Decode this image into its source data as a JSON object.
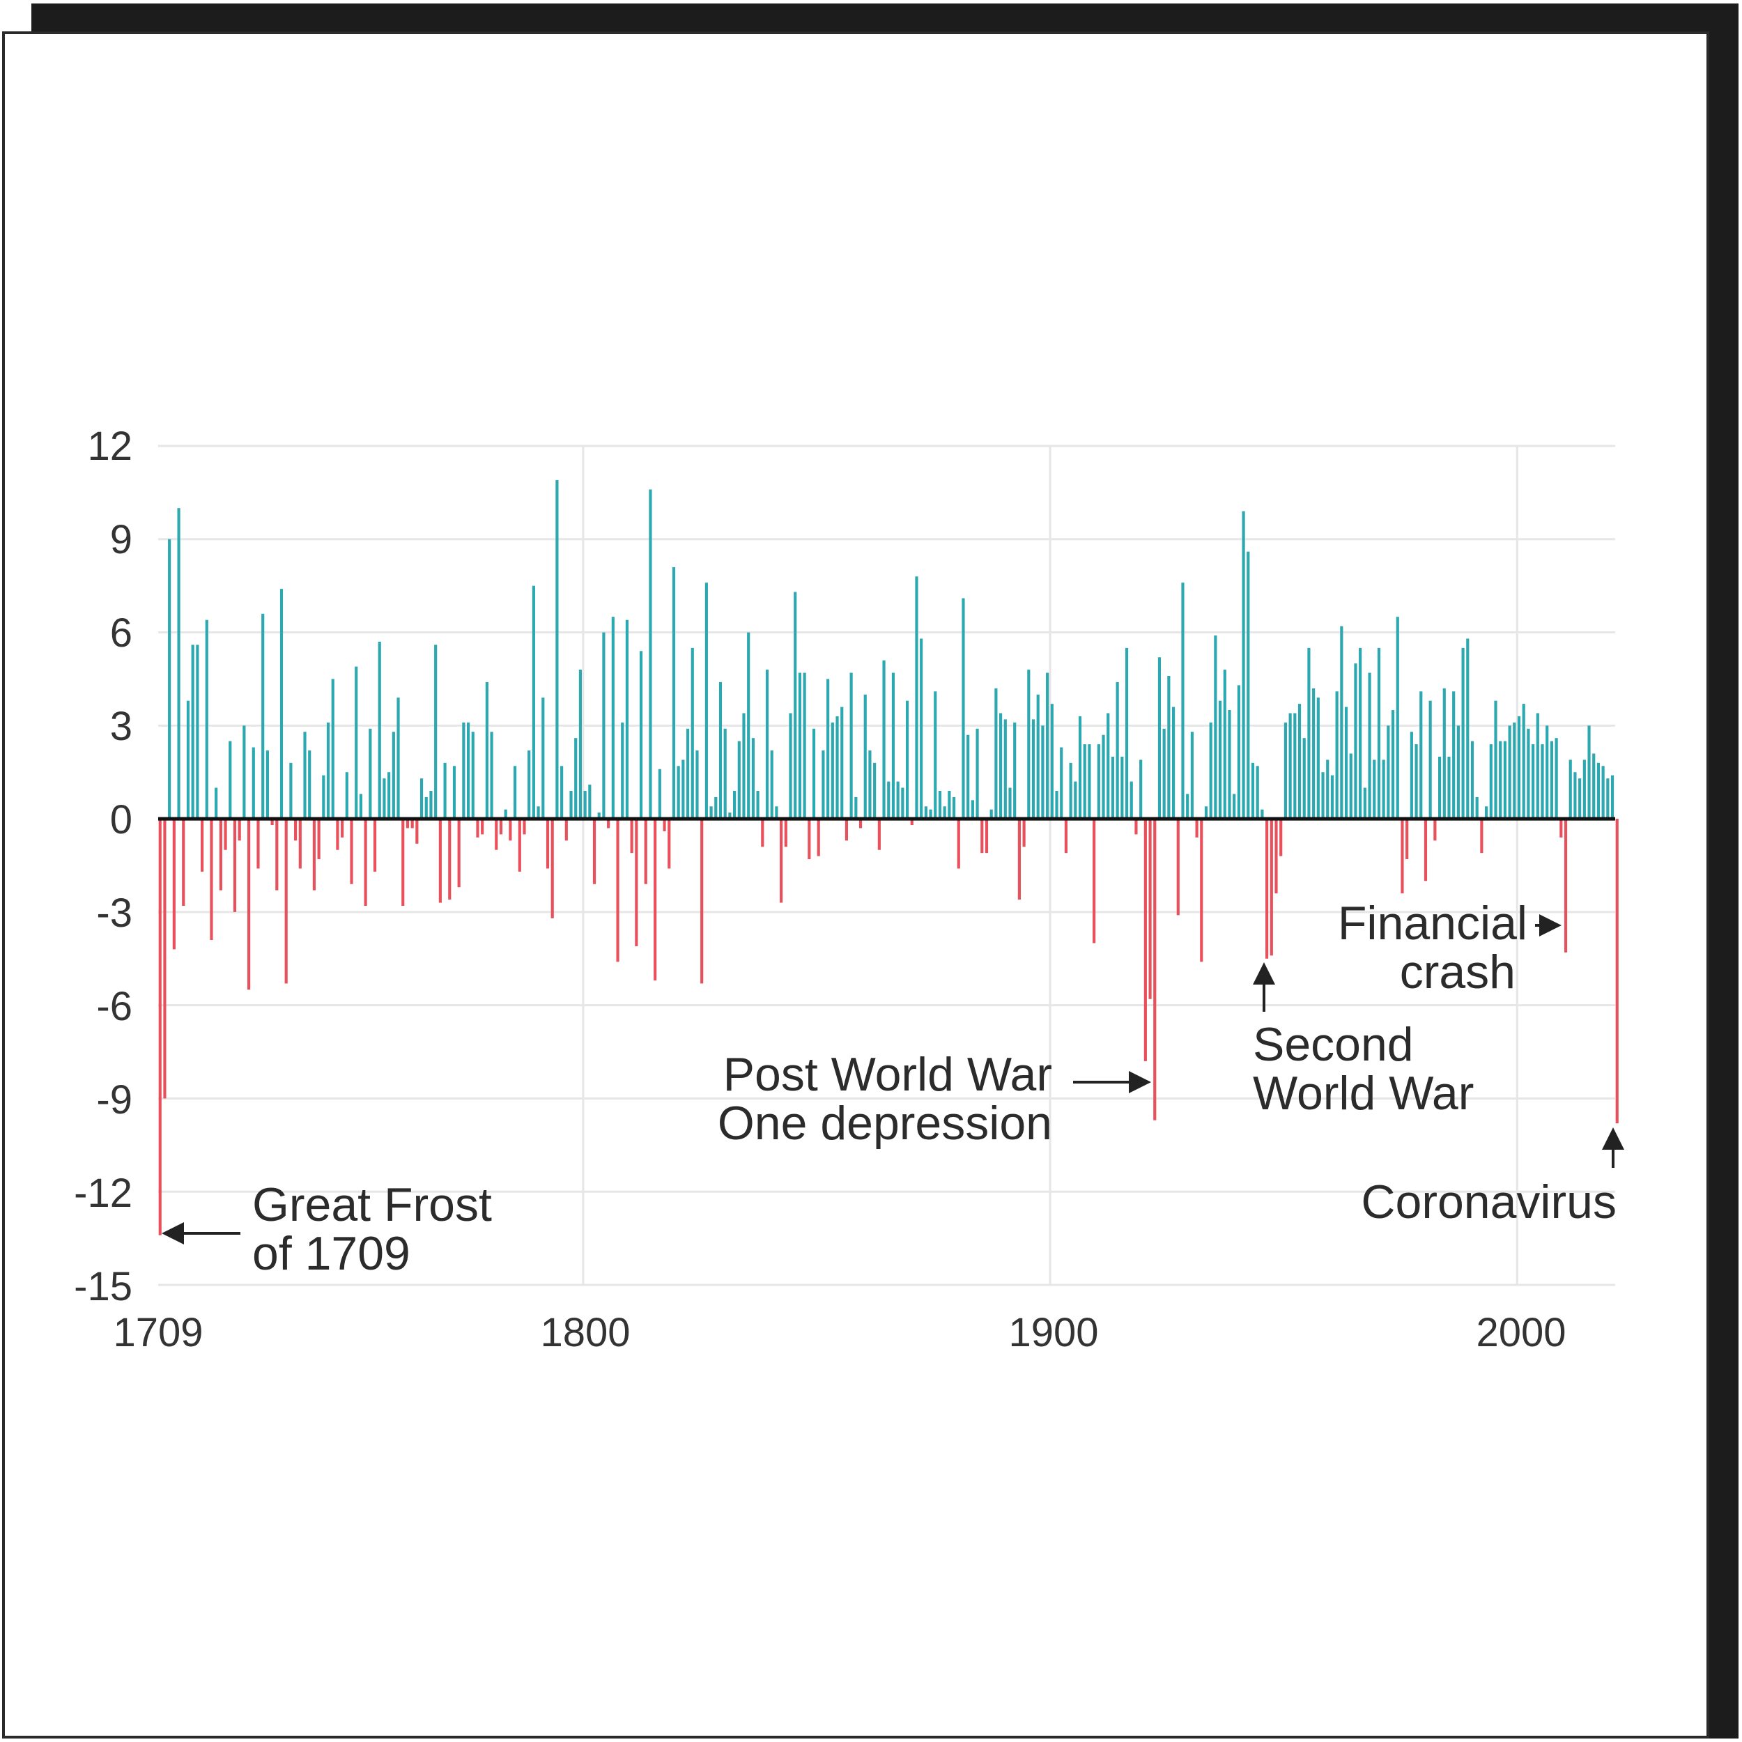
{
  "chart_data": {
    "type": "bar",
    "title": "",
    "xlabel": "",
    "ylabel": "",
    "ylim": [
      -15,
      12
    ],
    "xlim": [
      1709,
      2021
    ],
    "yticks": [
      "12",
      "9",
      "6",
      "3",
      "0",
      "-3",
      "-6",
      "-9",
      "-12",
      "-15"
    ],
    "xticks": [
      "1709",
      "1800",
      "1900",
      "2000"
    ],
    "colors": {
      "positive": "#2ba8b0",
      "negative": "#e8505b",
      "axis": "#111111"
    },
    "x_start": 1709,
    "values": [
      -13.4,
      -9.0,
      9.0,
      -4.2,
      10.0,
      -2.8,
      3.8,
      5.6,
      5.6,
      -1.7,
      6.4,
      -3.9,
      1.0,
      -2.3,
      -1.0,
      2.5,
      -3.0,
      -0.7,
      3.0,
      -5.5,
      2.3,
      -1.6,
      6.6,
      2.2,
      -0.2,
      -2.3,
      7.4,
      -5.3,
      1.8,
      -0.7,
      -1.6,
      2.8,
      2.2,
      -2.3,
      -1.3,
      1.4,
      3.1,
      4.5,
      -1.0,
      -0.6,
      1.5,
      -2.1,
      4.9,
      0.8,
      -2.8,
      2.9,
      -1.7,
      5.7,
      1.3,
      1.5,
      2.8,
      3.9,
      -2.8,
      -0.3,
      -0.3,
      -0.8,
      1.3,
      0.7,
      0.9,
      5.6,
      -2.7,
      1.8,
      -2.6,
      1.7,
      -2.2,
      3.1,
      3.1,
      2.8,
      -0.6,
      -0.5,
      4.4,
      2.8,
      -1.0,
      -0.5,
      0.3,
      -0.7,
      1.7,
      -1.7,
      -0.5,
      2.2,
      7.5,
      0.4,
      3.9,
      -1.6,
      -3.2,
      10.9,
      1.7,
      -0.7,
      0.9,
      2.6,
      4.8,
      0.9,
      1.1,
      -2.1,
      0.2,
      6.0,
      -0.3,
      6.5,
      -4.6,
      3.1,
      6.4,
      -1.1,
      -4.1,
      5.4,
      -2.1,
      10.6,
      -5.2,
      1.6,
      -0.4,
      -1.6,
      8.1,
      1.7,
      1.9,
      2.9,
      5.5,
      2.2,
      -5.3,
      7.6,
      0.4,
      0.7,
      4.4,
      2.9,
      0.2,
      0.9,
      2.5,
      3.4,
      6.0,
      2.6,
      0.9,
      -0.9,
      4.8,
      2.2,
      0.4,
      -2.7,
      -0.9,
      3.4,
      7.3,
      4.7,
      4.7,
      -1.3,
      2.9,
      -1.2,
      2.2,
      4.5,
      3.1,
      3.3,
      3.6,
      -0.7,
      4.7,
      0.7,
      -0.3,
      4.0,
      2.2,
      1.8,
      -1.0,
      5.1,
      1.2,
      4.7,
      1.2,
      1.0,
      3.8,
      -0.2,
      7.8,
      5.8,
      0.4,
      0.3,
      4.1,
      0.9,
      0.4,
      0.9,
      0.7,
      -1.6,
      7.1,
      2.7,
      0.6,
      2.9,
      -1.1,
      -1.1,
      0.3,
      4.2,
      3.4,
      3.2,
      1.0,
      3.1,
      -2.6,
      -0.9,
      4.8,
      3.2,
      4.0,
      3.0,
      4.7,
      3.7,
      0.9,
      2.3,
      -1.1,
      1.8,
      1.2,
      3.3,
      2.4,
      2.4,
      -4.0,
      2.4,
      2.7,
      3.4,
      2.0,
      4.4,
      2.0,
      5.5,
      1.2,
      -0.5,
      1.9,
      -7.8,
      -5.8,
      -9.7,
      5.2,
      2.9,
      4.6,
      3.6,
      -3.1,
      7.6,
      0.8,
      2.8,
      -0.6,
      -4.6,
      0.4,
      3.1,
      5.9,
      3.8,
      4.8,
      3.5,
      0.8,
      4.3,
      9.9,
      8.6,
      1.8,
      1.7,
      0.3,
      -4.5,
      -4.4,
      -2.4,
      -1.2,
      3.1,
      3.4,
      3.4,
      3.7,
      2.6,
      5.5,
      4.2,
      3.9,
      1.5,
      1.9,
      1.4,
      4.1,
      6.2,
      3.6,
      2.1,
      5.0,
      5.5,
      1.0,
      4.7,
      1.9,
      5.5,
      1.9,
      3.0,
      3.5,
      6.5,
      -2.4,
      -1.3,
      2.8,
      2.4,
      4.1,
      -2.0,
      3.8,
      -0.7,
      2.0,
      4.2,
      2.0,
      4.1,
      3.0,
      5.5,
      5.8,
      2.5,
      0.7,
      -1.1,
      0.4,
      2.4,
      3.8,
      2.5,
      2.5,
      3.0,
      3.1,
      3.3,
      3.7,
      2.9,
      2.4,
      3.4,
      2.4,
      3.0,
      2.5,
      2.6,
      -0.6,
      -4.3,
      1.9,
      1.5,
      1.3,
      1.9,
      3.0,
      2.1,
      1.8,
      1.7,
      1.3,
      1.4,
      -9.8
    ],
    "annotations": [
      {
        "lines": [
          "Great Frost",
          "of 1709"
        ],
        "year": 1709
      },
      {
        "lines": [
          "Post World War",
          "One depression"
        ],
        "year": 1921
      },
      {
        "lines": [
          "Second",
          "World War"
        ],
        "year": 1945
      },
      {
        "lines": [
          "Financial",
          "crash"
        ],
        "year": 2009
      },
      {
        "lines": [
          "Coronavirus"
        ],
        "year": 2020
      }
    ]
  }
}
